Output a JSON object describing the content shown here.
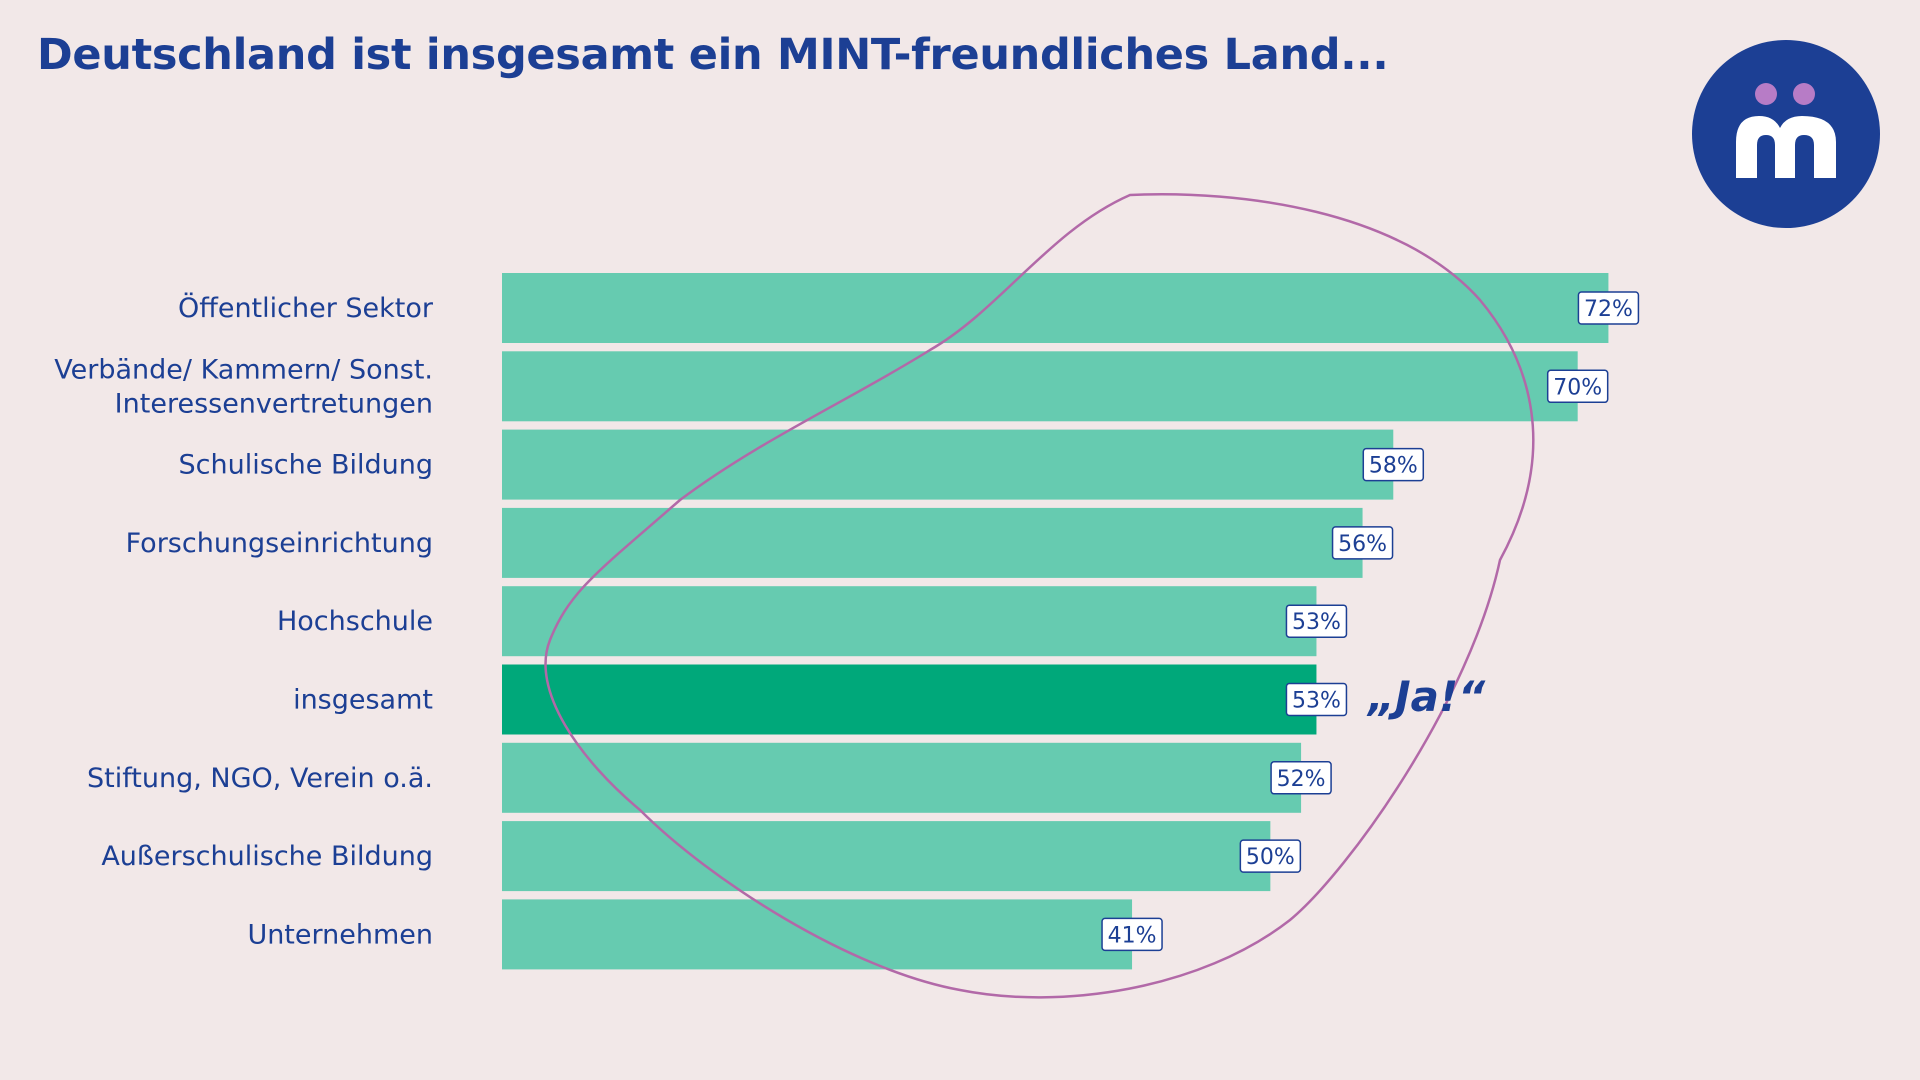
{
  "title": "Deutschland ist insgesamt ein MINT-freundliches Land...",
  "logo": {
    "icon": "mint-m-logo-icon",
    "background": "#1c3f94",
    "dots": "#b77cc6",
    "letter": "#ffffff"
  },
  "colors": {
    "bar": "#66cbb0",
    "bar_highlight": "#00a87a",
    "text": "#1c3f94",
    "outline": "#b269a8",
    "label_border": "#1c3f94"
  },
  "annotation": "„Ja!“",
  "chart_data": {
    "type": "bar",
    "orientation": "horizontal",
    "categories": [
      [
        "Öffentlicher Sektor"
      ],
      [
        "Verbände/ Kammern/ Sonst.",
        "Interessenvertretungen"
      ],
      [
        "Schulische Bildung"
      ],
      [
        "Forschungseinrichtung"
      ],
      [
        "Hochschule"
      ],
      [
        "insgesamt"
      ],
      [
        "Stiftung, NGO, Verein o.ä."
      ],
      [
        "Außerschulische Bildung"
      ],
      [
        "Unternehmen"
      ]
    ],
    "values": [
      72,
      70,
      58,
      56,
      53,
      53,
      52,
      50,
      41
    ],
    "value_labels": [
      "72%",
      "70%",
      "58%",
      "56%",
      "53%",
      "53%",
      "52%",
      "50%",
      "41%"
    ],
    "highlight_index": 5,
    "unit": "%",
    "grid": false,
    "legend": "none"
  }
}
